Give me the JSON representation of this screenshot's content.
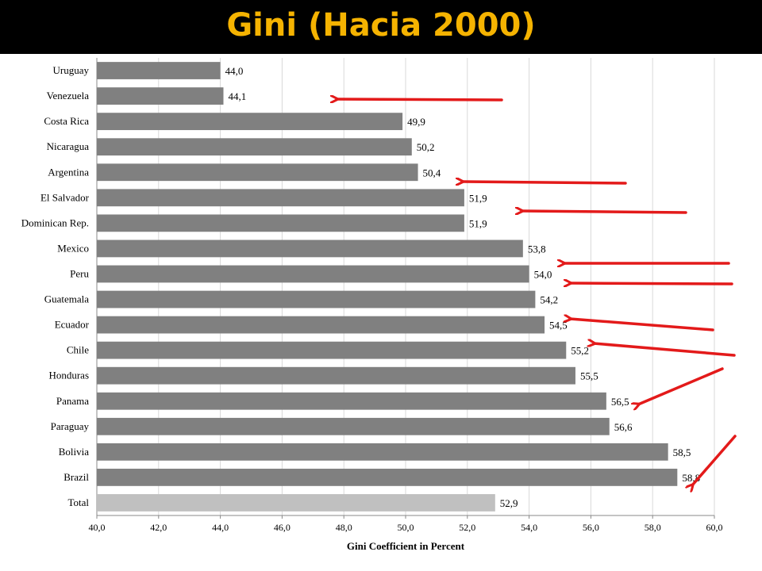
{
  "title": "Gini (Hacia 2000)",
  "colors": {
    "title_bg": "#000000",
    "title_text": "#f5b301",
    "bar": "#808080",
    "bar_total": "#c0c0c0",
    "arrow": "#e31a1a",
    "grid": "#d9d9d9"
  },
  "chart_data": {
    "type": "bar",
    "orientation": "horizontal",
    "title": "",
    "xlabel": "Gini Coefficient in Percent",
    "ylabel": "",
    "xlim": [
      40,
      60
    ],
    "grid": true,
    "categories": [
      "Uruguay",
      "Venezuela",
      "Costa Rica",
      "Nicaragua",
      "Argentina",
      "El Salvador",
      "Dominican Rep.",
      "Mexico",
      "Peru",
      "Guatemala",
      "Ecuador",
      "Chile",
      "Honduras",
      "Panama",
      "Paraguay",
      "Bolivia",
      "Brazil",
      "Total"
    ],
    "values": [
      44.0,
      44.1,
      49.9,
      50.2,
      50.4,
      51.9,
      51.9,
      53.8,
      54.0,
      54.2,
      54.5,
      55.2,
      55.5,
      56.5,
      56.6,
      58.5,
      58.8,
      52.9
    ],
    "value_labels": [
      "44,0",
      "44,1",
      "49,9",
      "50,2",
      "50,4",
      "51,9",
      "51,9",
      "53,8",
      "54,0",
      "54,2",
      "54,5",
      "55,2",
      "55,5",
      "56,5",
      "56,6",
      "58,5",
      "58,8",
      "52,9"
    ],
    "highlighted_category": "Total",
    "x_ticks": [
      "40,0",
      "42,0",
      "44,0",
      "46,0",
      "48,0",
      "50,0",
      "52,0",
      "54,0",
      "56,0",
      "58,0",
      "60,0"
    ],
    "annotations": {
      "type": "arrows",
      "color": "#e31a1a",
      "pointing_to": [
        "Venezuela",
        "El Salvador",
        "Dominican Rep.",
        "Peru",
        "Guatemala",
        "Ecuador",
        "Chile",
        "Panama",
        "Brazil"
      ]
    }
  }
}
